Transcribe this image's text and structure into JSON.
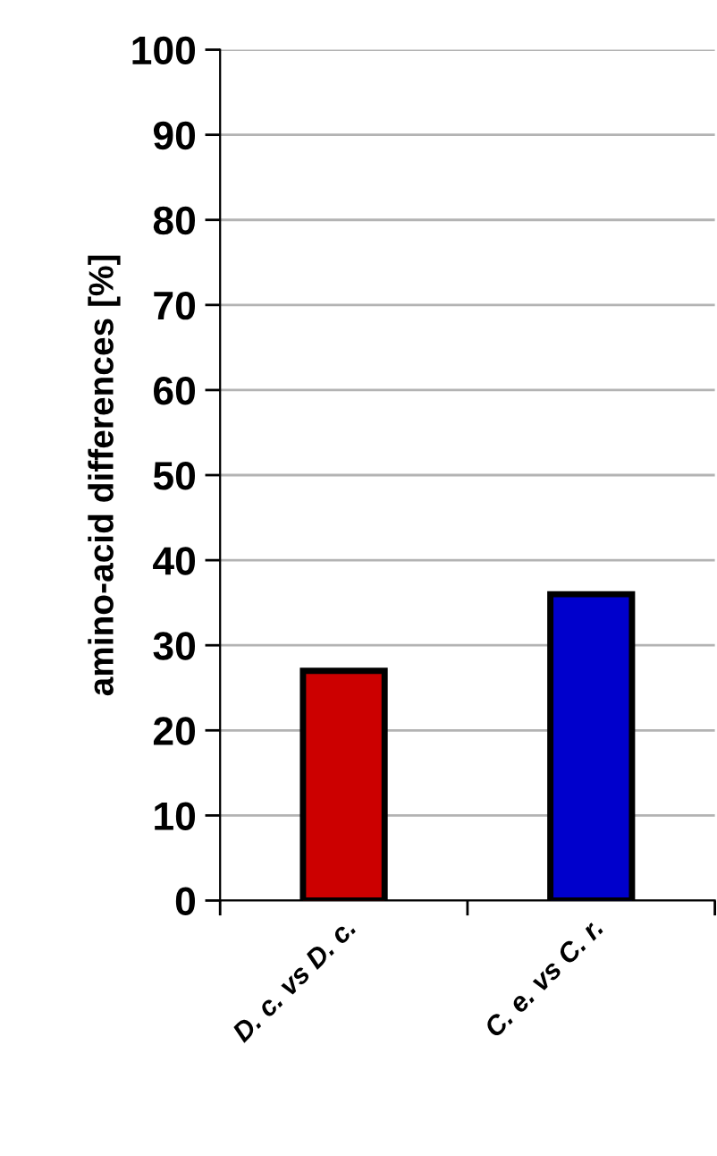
{
  "chart_data": {
    "type": "bar",
    "ylabel": "amino-acid differences [%]",
    "categories": [
      "D. c. vs D. c.",
      "C. e. vs C. r."
    ],
    "values": [
      27,
      36
    ],
    "colors": [
      "#cc0000",
      "#0000cc"
    ],
    "ylim": [
      0,
      100
    ],
    "yticks": [
      0,
      10,
      20,
      30,
      40,
      50,
      60,
      70,
      80,
      90,
      100
    ],
    "grid": "y"
  }
}
